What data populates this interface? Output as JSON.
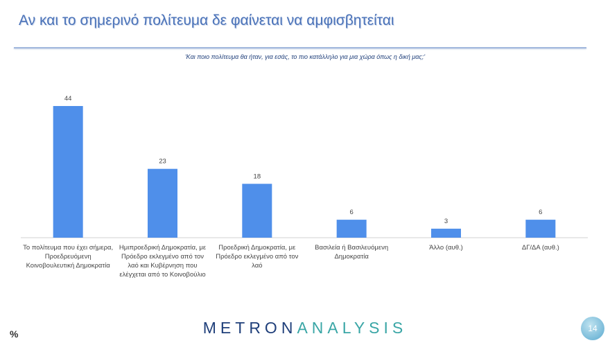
{
  "title": "Αν και το σημερινό πολίτευμα δε φαίνεται να αμφισβητείται",
  "question": "'Και ποιο πολίτευμα θα ήταν, για εσάς, το πιο κατάλληλο για μια χώρα όπως η δική μας;'",
  "unit": "%",
  "logo": {
    "part1": "METRON",
    "part2": "ANALYSIS"
  },
  "page_number": "14",
  "chart_data": {
    "type": "bar",
    "categories": [
      "Το πολίτευμα που έχει σήμερα, Προεδρευόμενη Κοινοβουλευτική Δημοκρατία",
      "Ημιπροεδρική Δημοκρατία, με Πρόεδρο εκλεγμένο από τον λαό και Κυβέρνηση που ελέγχεται από το Κοινοβούλιο",
      "Προεδρική Δημοκρατία, με Πρόεδρο εκλεγμένο από τον λαό",
      "Βασιλεία ή Βασιλευόμενη Δημοκρατία",
      "Άλλο (αυθ.)",
      "ΔΓ/ΔΑ (αυθ.)"
    ],
    "values": [
      44,
      23,
      18,
      6,
      3,
      6
    ],
    "data_labels": [
      "44",
      "23",
      "18",
      "6",
      "3",
      "6"
    ],
    "ylim": [
      0,
      50
    ],
    "grid": false,
    "bar_color": "#4f8fea"
  }
}
